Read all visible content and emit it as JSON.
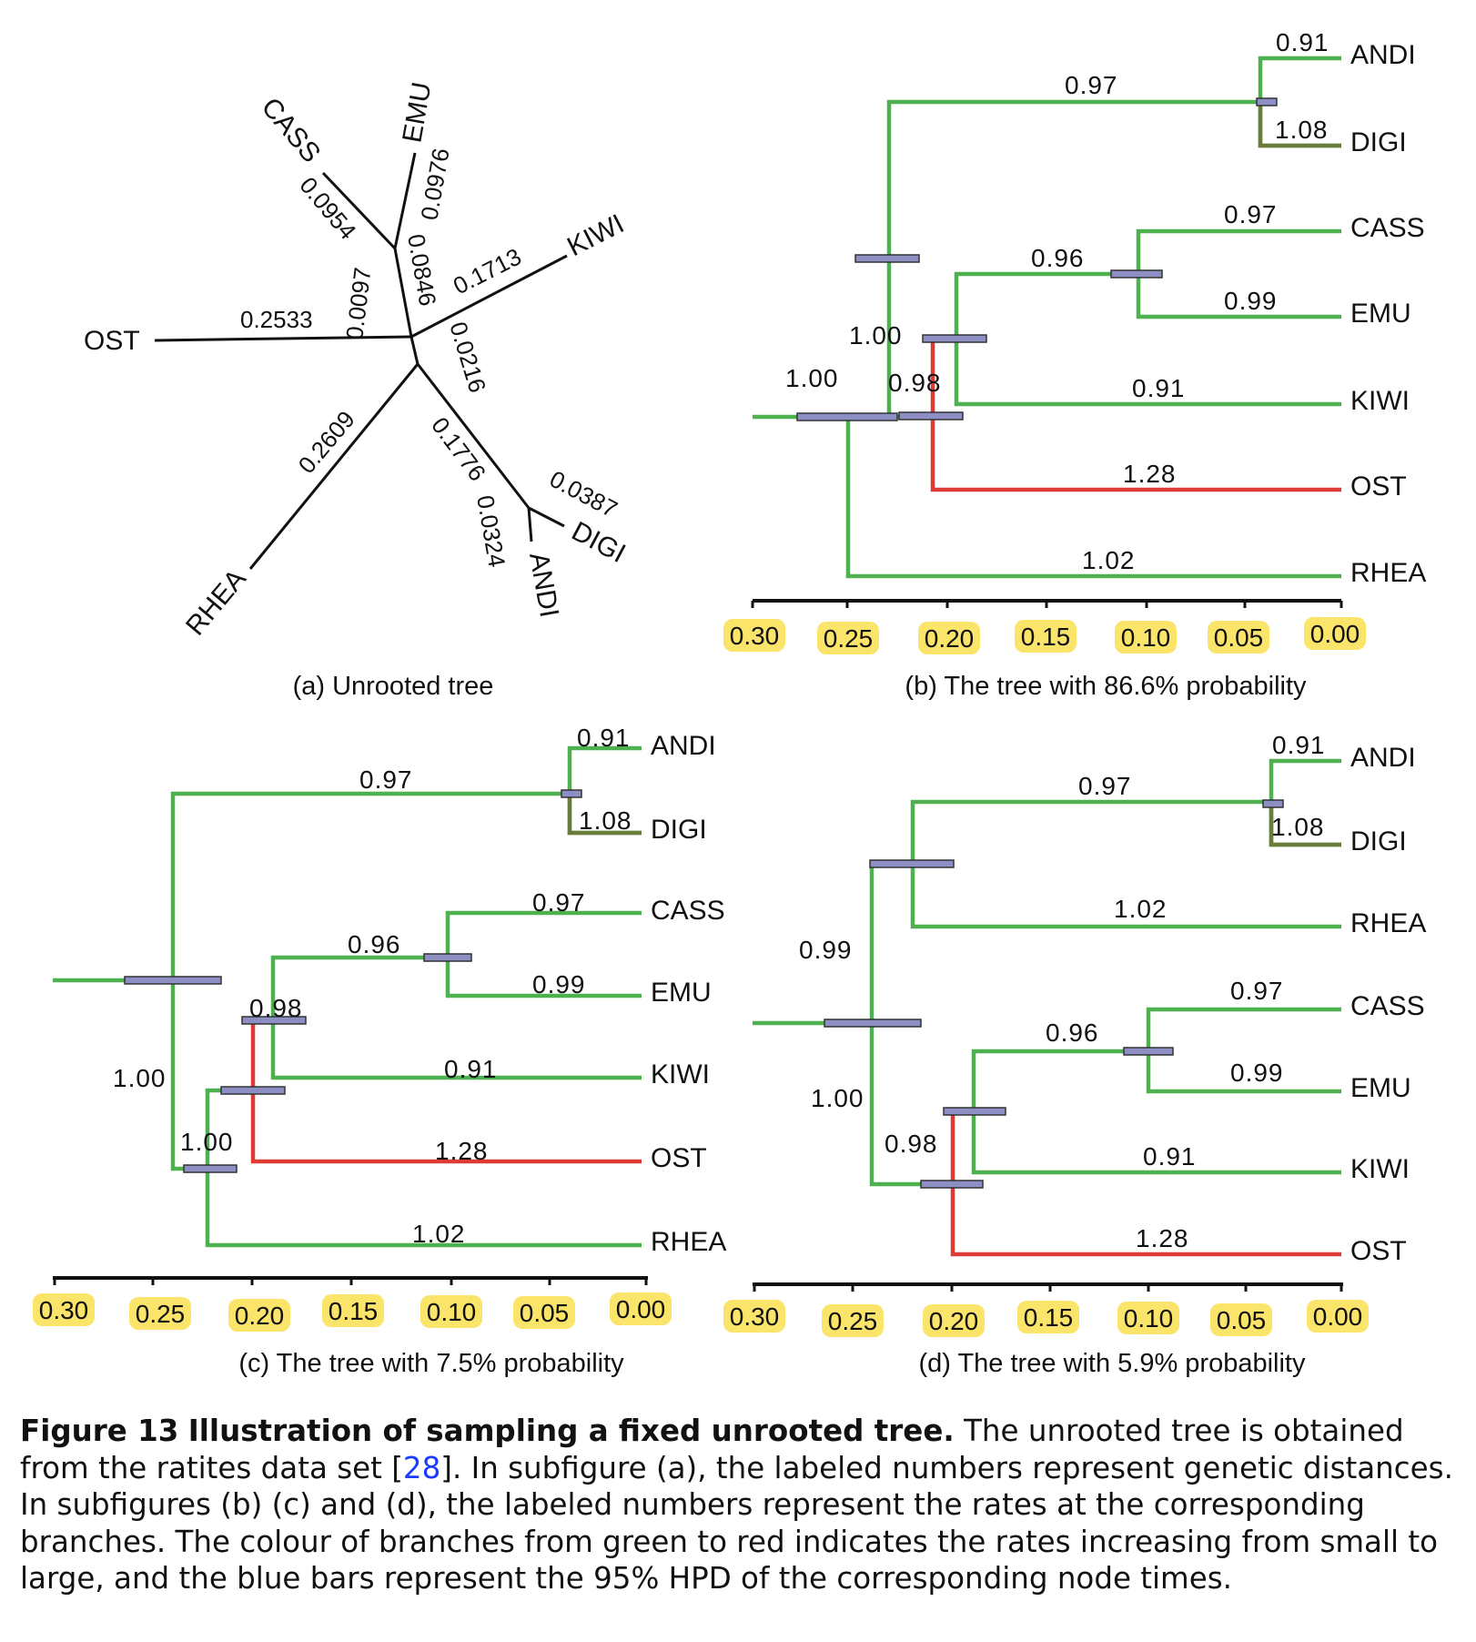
{
  "colors": {
    "low_rate": "#4fb04f",
    "mid_rate": "#6b7b3a",
    "high_rate": "#dd3b33",
    "mixed_rate": "#5c9a4c",
    "hpd_bar": "#8c8ec4",
    "tick_highlight": "#fbe46a"
  },
  "panel_a": {
    "caption": "(a) Unrooted tree",
    "taxa": [
      "OST",
      "CASS",
      "EMU",
      "KIWI",
      "DIGI",
      "ANDI",
      "RHEA"
    ],
    "distances": [
      "0.2533",
      "0.0954",
      "0.0976",
      "0.0097",
      "0.0846",
      "0.1713",
      "0.0216",
      "0.2609",
      "0.1776",
      "0.0387",
      "0.0324"
    ]
  },
  "panel_b": {
    "caption": "(b) The tree with 86.6% probability",
    "taxa": [
      "ANDI",
      "DIGI",
      "CASS",
      "EMU",
      "KIWI",
      "OST",
      "RHEA"
    ],
    "rates": [
      "0.91",
      "0.97",
      "1.08",
      "0.97",
      "0.96",
      "0.99",
      "1.00",
      "1.00",
      "0.98",
      "0.91",
      "1.28",
      "1.02"
    ]
  },
  "panel_c": {
    "caption": "(c) The tree with 7.5% probability",
    "taxa": [
      "ANDI",
      "DIGI",
      "CASS",
      "EMU",
      "KIWI",
      "OST",
      "RHEA"
    ],
    "rates": [
      "0.91",
      "0.97",
      "1.08",
      "0.97",
      "0.96",
      "0.99",
      "0.98",
      "1.00",
      "0.91",
      "1.00",
      "1.28",
      "1.02"
    ]
  },
  "panel_d": {
    "caption": "(d) The tree with 5.9% probability",
    "taxa": [
      "ANDI",
      "DIGI",
      "RHEA",
      "CASS",
      "EMU",
      "KIWI",
      "OST"
    ],
    "rates": [
      "0.91",
      "0.97",
      "1.08",
      "1.02",
      "0.99",
      "0.97",
      "0.96",
      "0.99",
      "1.00",
      "0.98",
      "0.91",
      "1.28"
    ]
  },
  "time_axis_ticks": [
    "0.30",
    "0.25",
    "0.20",
    "0.15",
    "0.10",
    "0.05",
    "0.00"
  ],
  "figure_caption": {
    "label": "Figure 13",
    "title": "Illustration of sampling a fixed unrooted tree.",
    "text_before_ref": "The unrooted tree is obtained from the ratites data set [",
    "ref": "28",
    "text_after_ref": "]. In subfigure (a), the labeled numbers represent genetic distances. In subfigures (b) (c) and (d), the labeled numbers represent the rates at the corresponding branches. The colour of branches from green to red indicates the rates increasing from small to large, and the blue bars represent the 95% HPD of the corresponding node times."
  }
}
